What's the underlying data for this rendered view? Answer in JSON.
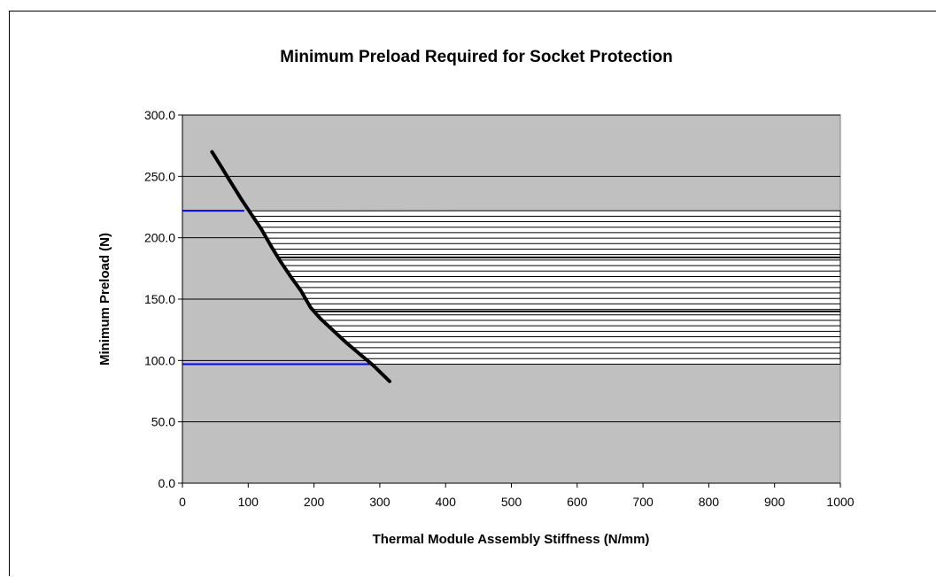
{
  "chart_data": {
    "type": "line",
    "title": "Minimum Preload Required for Socket Protection",
    "xlabel": "Thermal Module Assembly Stiffness (N/mm)",
    "ylabel": "Minimum Preload (N)",
    "xlim": [
      0,
      1000
    ],
    "ylim": [
      0,
      300
    ],
    "x_ticks": [
      "0",
      "100",
      "200",
      "300",
      "400",
      "500",
      "600",
      "700",
      "800",
      "900",
      "1000"
    ],
    "y_ticks": [
      "0.0",
      "50.0",
      "100.0",
      "150.0",
      "200.0",
      "250.0",
      "300.0"
    ],
    "grid": "horizontal",
    "plot_background": "#c0c0c0",
    "series": [
      {
        "color": "#000000",
        "x": [
          45,
          60,
          75,
          90,
          105,
          120,
          135,
          150,
          165,
          180,
          195,
          210,
          230,
          250,
          270,
          290,
          315
        ],
        "y": [
          270,
          257,
          244,
          231,
          219,
          207,
          193,
          180,
          168,
          157,
          143,
          134,
          124,
          114,
          105,
          96,
          83
        ]
      }
    ],
    "reference_lines": [
      {
        "color": "#0000ff",
        "y": 222,
        "x": [
          0,
          94
        ]
      },
      {
        "color": "#0000ff",
        "y": 97,
        "x": [
          0,
          290
        ]
      }
    ],
    "shaded_region": {
      "pattern": "horizontal-lines",
      "y_range": [
        97,
        222
      ],
      "x_max": 1000,
      "band_lines_y": [
        184,
        140
      ]
    }
  }
}
